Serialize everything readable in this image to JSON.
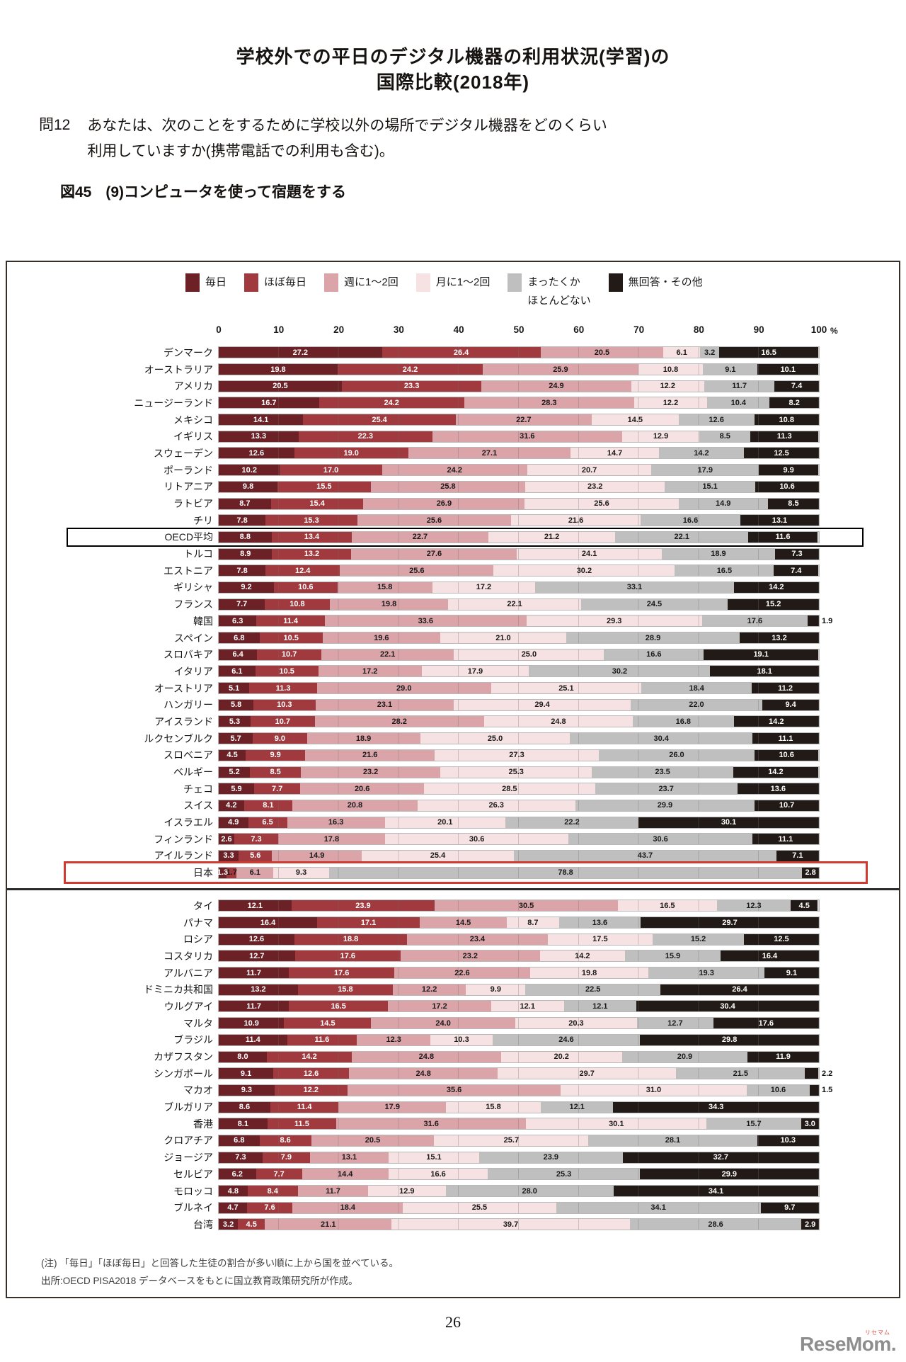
{
  "page": {
    "title_line1": "学校外での平日のデジタル機器の利用状況(学習)の",
    "title_line2": "国際比較(2018年)",
    "question_no": "問12",
    "question_line1": "あなたは、次のことをするために学校以外の場所でデジタル機器をどのくらい",
    "question_line2": "利用していますか(携帯電話での利用も含む)。",
    "figure_label": "図45",
    "figure_title": "(9)コンピュータを使って宿題をする",
    "note_line1": "(注) 「毎日」「ほぼ毎日」と回答した生徒の割合が多い順に上から国を並べている。",
    "note_line2": "出所:OECD PISA2018 データベースをもとに国立教育政策研究所が作成。",
    "page_number": "26",
    "logo_text": "ReseMom.",
    "logo_ruby": "リセマム"
  },
  "chart_data": {
    "type": "bar",
    "variant": "horizontal-stacked-100pct",
    "unit": "%",
    "x_ticks": [
      0,
      10,
      20,
      30,
      40,
      50,
      60,
      70,
      80,
      90,
      100
    ],
    "xlim": [
      0,
      100
    ],
    "grid": true,
    "legend_position": "top",
    "series_labels": [
      "毎日",
      "ほぼ毎日",
      "週に1～2回",
      "月に1～2回",
      "まったくか\nほとんどない",
      "無回答・その他"
    ],
    "colors": [
      "#6b2126",
      "#a03a3e",
      "#dba4a9",
      "#f6e2e2",
      "#bfbfbf",
      "#211a16"
    ],
    "label_text_colors": [
      "#ffffff",
      "#ffffff",
      "#1a1a1a",
      "#1a1a1a",
      "#1a1a1a",
      "#ffffff"
    ],
    "highlight_colors": {
      "black": "#000000",
      "red": "#cf3b2e"
    },
    "groups": [
      {
        "rows": [
          {
            "label": "デンマーク",
            "values": [
              27.2,
              26.4,
              20.5,
              6.1,
              3.2,
              16.5
            ]
          },
          {
            "label": "オーストラリア",
            "values": [
              19.8,
              24.2,
              25.9,
              10.8,
              9.1,
              10.1
            ]
          },
          {
            "label": "アメリカ",
            "values": [
              20.5,
              23.3,
              24.9,
              12.2,
              11.7,
              7.4
            ]
          },
          {
            "label": "ニュージーランド",
            "values": [
              16.7,
              24.2,
              28.3,
              12.2,
              10.4,
              8.2
            ]
          },
          {
            "label": "メキシコ",
            "values": [
              14.1,
              25.4,
              22.7,
              14.5,
              12.6,
              10.8
            ]
          },
          {
            "label": "イギリス",
            "values": [
              13.3,
              22.3,
              31.6,
              12.9,
              8.5,
              11.3
            ]
          },
          {
            "label": "スウェーデン",
            "values": [
              12.6,
              19.0,
              27.1,
              14.7,
              14.2,
              12.5
            ]
          },
          {
            "label": "ポーランド",
            "values": [
              10.2,
              17.0,
              24.2,
              20.7,
              17.9,
              9.9
            ]
          },
          {
            "label": "リトアニア",
            "values": [
              9.8,
              15.5,
              25.8,
              23.2,
              15.1,
              10.6
            ]
          },
          {
            "label": "ラトビア",
            "values": [
              8.7,
              15.4,
              26.9,
              25.6,
              14.9,
              8.5
            ]
          },
          {
            "label": "チリ",
            "values": [
              7.8,
              15.3,
              25.6,
              21.6,
              16.6,
              13.1
            ]
          },
          {
            "label": "OECD平均",
            "values": [
              8.8,
              13.4,
              22.7,
              21.2,
              22.1,
              11.6
            ],
            "highlight": "black"
          },
          {
            "label": "トルコ",
            "values": [
              8.9,
              13.2,
              27.6,
              24.1,
              18.9,
              7.3
            ]
          },
          {
            "label": "エストニア",
            "values": [
              7.8,
              12.4,
              25.6,
              30.2,
              16.5,
              7.4
            ]
          },
          {
            "label": "ギリシャ",
            "values": [
              9.2,
              10.6,
              15.8,
              17.2,
              33.1,
              14.2
            ]
          },
          {
            "label": "フランス",
            "values": [
              7.7,
              10.8,
              19.8,
              22.1,
              24.5,
              15.2
            ]
          },
          {
            "label": "韓国",
            "values": [
              6.3,
              11.4,
              33.6,
              29.3,
              17.6,
              1.9
            ]
          },
          {
            "label": "スペイン",
            "values": [
              6.8,
              10.5,
              19.6,
              21.0,
              28.9,
              13.2
            ]
          },
          {
            "label": "スロバキア",
            "values": [
              6.4,
              10.7,
              22.1,
              25.0,
              16.6,
              19.1
            ]
          },
          {
            "label": "イタリア",
            "values": [
              6.1,
              10.5,
              17.2,
              17.9,
              30.2,
              18.1
            ]
          },
          {
            "label": "オーストリア",
            "values": [
              5.1,
              11.3,
              29.0,
              25.1,
              18.4,
              11.2
            ]
          },
          {
            "label": "ハンガリー",
            "values": [
              5.8,
              10.3,
              23.1,
              29.4,
              22.0,
              9.4
            ]
          },
          {
            "label": "アイスランド",
            "values": [
              5.3,
              10.7,
              28.2,
              24.8,
              16.8,
              14.2
            ]
          },
          {
            "label": "ルクセンブルク",
            "values": [
              5.7,
              9.0,
              18.9,
              25.0,
              30.4,
              11.1
            ]
          },
          {
            "label": "スロベニア",
            "values": [
              4.5,
              9.9,
              21.6,
              27.3,
              26.0,
              10.6
            ]
          },
          {
            "label": "ベルギー",
            "values": [
              5.2,
              8.5,
              23.2,
              25.3,
              23.5,
              14.2
            ]
          },
          {
            "label": "チェコ",
            "values": [
              5.9,
              7.7,
              20.6,
              28.5,
              23.7,
              13.6
            ]
          },
          {
            "label": "スイス",
            "values": [
              4.2,
              8.1,
              20.8,
              26.3,
              29.9,
              10.7
            ]
          },
          {
            "label": "イスラエル",
            "values": [
              4.9,
              6.5,
              16.3,
              20.1,
              22.2,
              30.1
            ]
          },
          {
            "label": "フィンランド",
            "values": [
              2.6,
              7.3,
              17.8,
              30.6,
              30.6,
              11.1
            ]
          },
          {
            "label": "アイルランド",
            "values": [
              3.3,
              5.6,
              14.9,
              25.4,
              43.7,
              7.1
            ]
          },
          {
            "label": "日本",
            "values": [
              1.3,
              1.7,
              6.1,
              9.3,
              78.8,
              2.8
            ],
            "highlight": "red"
          }
        ]
      },
      {
        "rows": [
          {
            "label": "タイ",
            "values": [
              12.1,
              23.9,
              30.5,
              16.5,
              12.3,
              4.5
            ]
          },
          {
            "label": "パナマ",
            "values": [
              16.4,
              17.1,
              14.5,
              8.7,
              13.6,
              29.7
            ]
          },
          {
            "label": "ロシア",
            "values": [
              12.6,
              18.8,
              23.4,
              17.5,
              15.2,
              12.5
            ]
          },
          {
            "label": "コスタリカ",
            "values": [
              12.7,
              17.6,
              23.2,
              14.2,
              15.9,
              16.4
            ]
          },
          {
            "label": "アルバニア",
            "values": [
              11.7,
              17.6,
              22.6,
              19.8,
              19.3,
              9.1
            ]
          },
          {
            "label": "ドミニカ共和国",
            "values": [
              13.2,
              15.8,
              12.2,
              9.9,
              22.5,
              26.4
            ]
          },
          {
            "label": "ウルグアイ",
            "values": [
              11.7,
              16.5,
              17.2,
              12.1,
              12.1,
              30.4
            ]
          },
          {
            "label": "マルタ",
            "values": [
              10.9,
              14.5,
              24.0,
              20.3,
              12.7,
              17.6
            ]
          },
          {
            "label": "ブラジル",
            "values": [
              11.4,
              11.6,
              12.3,
              10.3,
              24.6,
              29.8
            ]
          },
          {
            "label": "カザフスタン",
            "values": [
              8.0,
              14.2,
              24.8,
              20.2,
              20.9,
              11.9
            ]
          },
          {
            "label": "シンガポール",
            "values": [
              9.1,
              12.6,
              24.8,
              29.7,
              21.5,
              2.2
            ]
          },
          {
            "label": "マカオ",
            "values": [
              9.3,
              12.2,
              35.6,
              31.0,
              10.6,
              1.5
            ]
          },
          {
            "label": "ブルガリア",
            "values": [
              8.6,
              11.4,
              17.9,
              15.8,
              12.1,
              34.3
            ]
          },
          {
            "label": "香港",
            "values": [
              8.1,
              11.5,
              31.6,
              30.1,
              15.7,
              3.0
            ]
          },
          {
            "label": "クロアチア",
            "values": [
              6.8,
              8.6,
              20.5,
              25.7,
              28.1,
              10.3
            ]
          },
          {
            "label": "ジョージア",
            "values": [
              7.3,
              7.9,
              13.1,
              15.1,
              23.9,
              32.7
            ]
          },
          {
            "label": "セルビア",
            "values": [
              6.2,
              7.7,
              14.4,
              16.6,
              25.3,
              29.9
            ]
          },
          {
            "label": "モロッコ",
            "values": [
              4.8,
              8.4,
              11.7,
              12.9,
              28.0,
              34.1
            ]
          },
          {
            "label": "ブルネイ",
            "values": [
              4.7,
              7.6,
              18.4,
              25.5,
              34.1,
              9.7
            ]
          },
          {
            "label": "台湾",
            "values": [
              3.2,
              4.5,
              21.1,
              39.7,
              28.6,
              2.9
            ]
          }
        ]
      }
    ]
  }
}
